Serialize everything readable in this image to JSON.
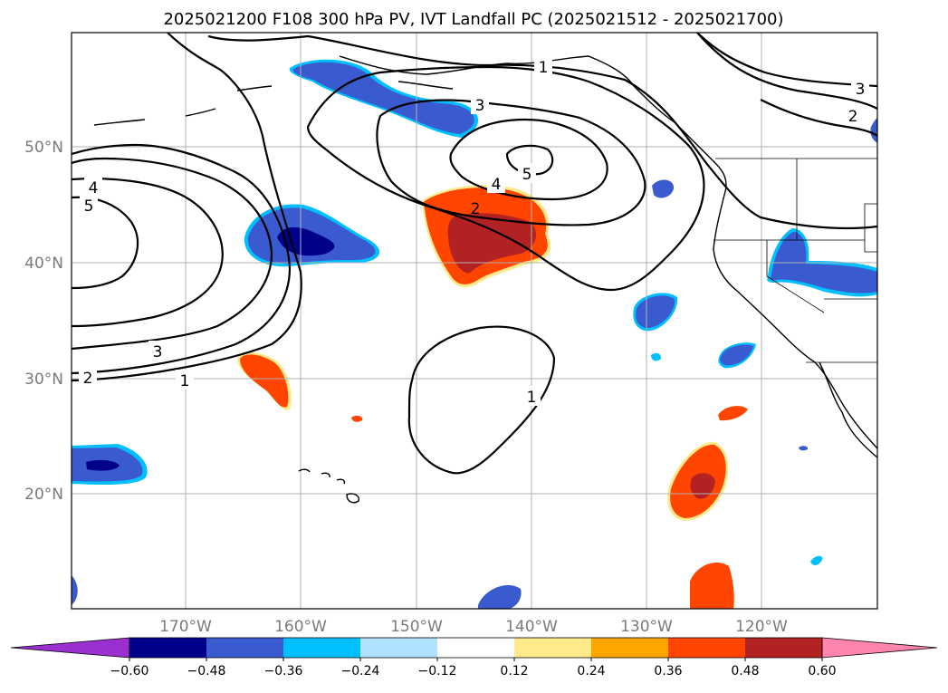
{
  "title": "2025021200 F108 300 hPa PV, IVT Landfall PC (2025021512 - 2025021700)",
  "map": {
    "lon_range": [
      -180,
      -110
    ],
    "lat_range": [
      10,
      60
    ],
    "lat_labels": [
      "50°N",
      "40°N",
      "30°N",
      "20°N"
    ],
    "lon_labels": [
      "170°W",
      "160°W",
      "150°W",
      "140°W",
      "130°W",
      "120°W"
    ],
    "contour_labels": [
      "1",
      "3",
      "4",
      "5",
      "2",
      "4",
      "5",
      "3",
      "1",
      "2",
      "3",
      "2",
      "1"
    ]
  },
  "colorbar": {
    "colors": [
      "#9b30d0",
      "#00008b",
      "#3a5bd0",
      "#00bfff",
      "#b0e2ff",
      "#ffffff",
      "#ffe98a",
      "#ffa500",
      "#ff4500",
      "#b22222",
      "#ff85ad"
    ],
    "tick_labels": [
      "−0.60",
      "−0.48",
      "−0.36",
      "−0.24",
      "−0.12",
      "0.12",
      "0.24",
      "0.36",
      "0.48",
      "0.60"
    ]
  }
}
